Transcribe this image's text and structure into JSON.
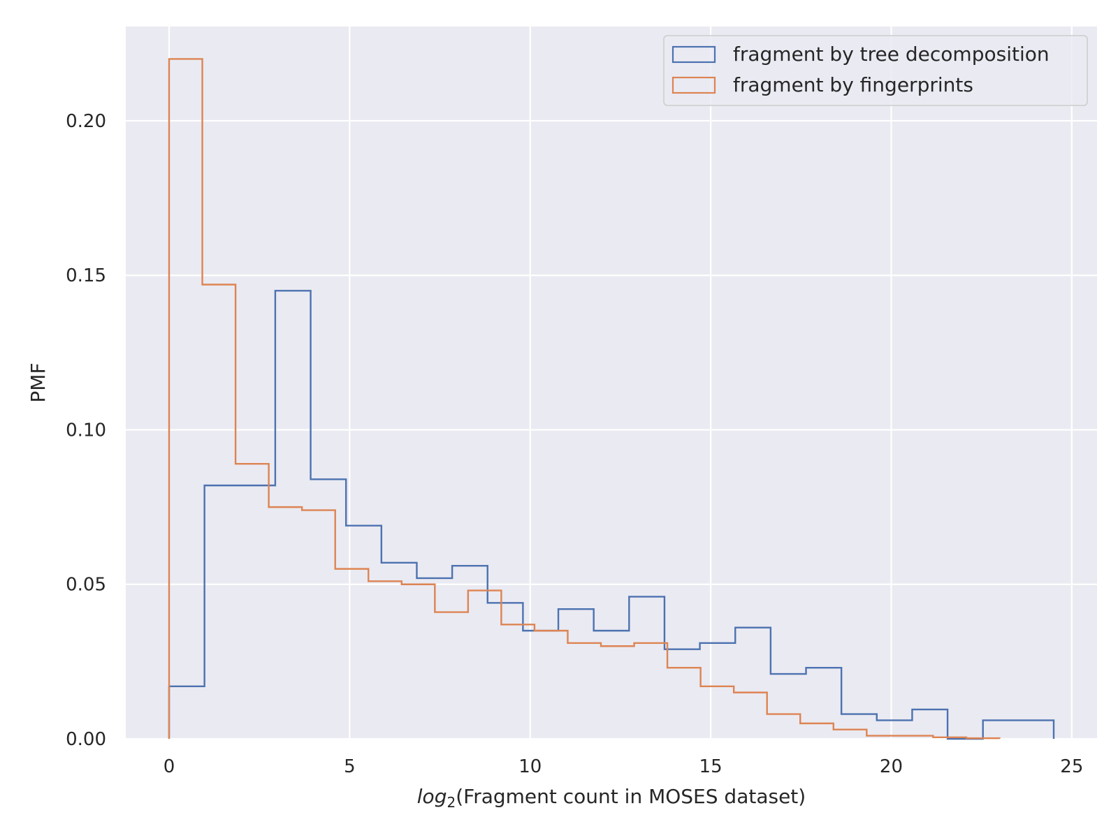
{
  "chart_data": {
    "type": "histogram",
    "xlabel_prefix": "log",
    "xlabel_subscript": "2",
    "xlabel_rest": "(Fragment count in MOSES dataset)",
    "ylabel": "PMF",
    "xlim": [
      -1.2,
      25.7
    ],
    "ylim": [
      0,
      0.2305
    ],
    "x_ticks": [
      0,
      5,
      10,
      15,
      20,
      25
    ],
    "y_ticks": [
      0.0,
      0.05,
      0.1,
      0.15,
      0.2
    ],
    "y_tick_labels": [
      "0.00",
      "0.05",
      "0.10",
      "0.15",
      "0.20"
    ],
    "grid": true,
    "legend_position": "top-right",
    "series": [
      {
        "name": "fragment by tree decomposition",
        "color": "#4c72b0",
        "edges": [
          0,
          0.98,
          1.96,
          2.94,
          3.92,
          4.9,
          5.88,
          6.86,
          7.84,
          8.82,
          9.8,
          10.78,
          11.76,
          12.74,
          13.72,
          14.7,
          15.68,
          16.66,
          17.64,
          18.62,
          19.6,
          20.58,
          21.56,
          22.54,
          23.52,
          24.5
        ],
        "values": [
          0.017,
          0.082,
          0.082,
          0.145,
          0.084,
          0.069,
          0.057,
          0.052,
          0.056,
          0.044,
          0.035,
          0.042,
          0.035,
          0.046,
          0.029,
          0.031,
          0.036,
          0.021,
          0.023,
          0.008,
          0.006,
          0.0095,
          0.0,
          0.006,
          0.006
        ]
      },
      {
        "name": "fragment by fingerprints",
        "color": "#dd8452",
        "edges": [
          0,
          0.92,
          1.84,
          2.76,
          3.68,
          4.6,
          5.52,
          6.44,
          7.36,
          8.28,
          9.2,
          10.12,
          11.04,
          11.96,
          12.88,
          13.8,
          14.72,
          15.64,
          16.56,
          17.48,
          18.4,
          19.32,
          20.24,
          21.16,
          22.08,
          23.0
        ],
        "values": [
          0.22,
          0.147,
          0.089,
          0.075,
          0.074,
          0.055,
          0.051,
          0.05,
          0.041,
          0.048,
          0.037,
          0.035,
          0.031,
          0.03,
          0.031,
          0.023,
          0.017,
          0.015,
          0.008,
          0.005,
          0.003,
          0.001,
          0.001,
          0.0005,
          0.0002
        ]
      }
    ]
  }
}
